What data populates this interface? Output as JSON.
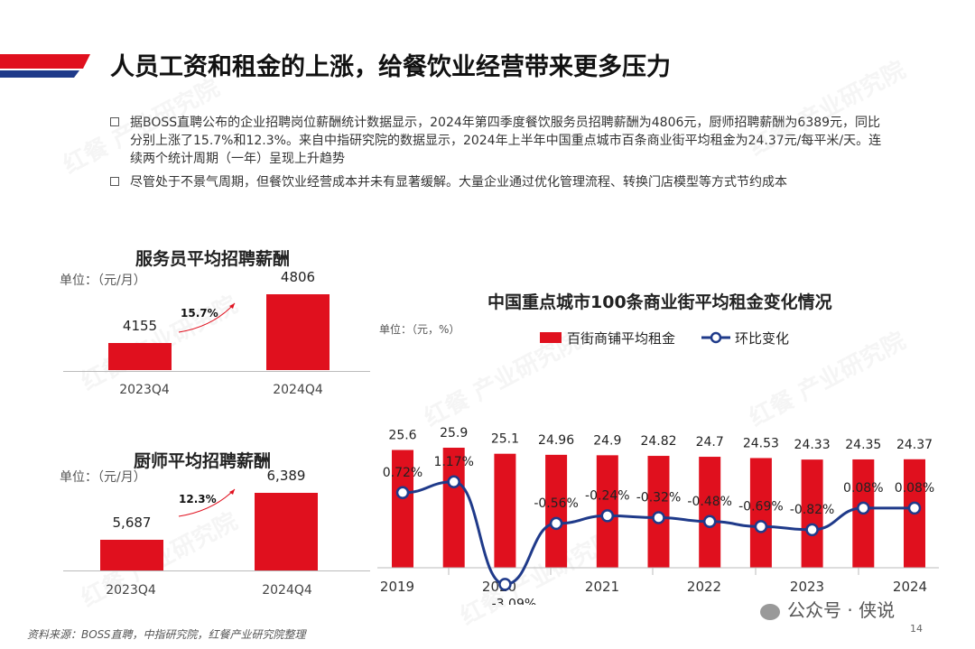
{
  "header": {
    "title": "人员工资和租金的上涨，给餐饮业经营带来更多压力"
  },
  "bullets": [
    "据BOSS直聘公布的企业招聘岗位薪酬统计数据显示，2024年第四季度餐饮服务员招聘薪酬为4806元，厨师招聘薪酬为6389元，同比分别上涨了15.7%和12.3%。来自中指研究院的数据显示，2024年上半年中国重点城市百条商业街平均租金为24.37元/每平米/天。连续两个统计周期（一年）呈现上升趋势",
    "尽管处于不景气周期，但餐饮业经营成本并未有显著缓解。大量企业通过优化管理流程、转换门店模型等方式节约成本"
  ],
  "chart_data": [
    {
      "type": "bar",
      "title": "服务员平均招聘薪酬",
      "unit": "单位：（元/月）",
      "categories": [
        "2023Q4",
        "2024Q4"
      ],
      "values": [
        4155,
        4806
      ],
      "value_labels": [
        "4155",
        "4806"
      ],
      "growth_label": "15.7%",
      "color": "#e0101e"
    },
    {
      "type": "bar",
      "title": "厨师平均招聘薪酬",
      "unit": "单位：（元/月）",
      "categories": [
        "2023Q4",
        "2024Q4"
      ],
      "values": [
        5687,
        6389
      ],
      "value_labels": [
        "5,687",
        "6,389"
      ],
      "growth_label": "12.3%",
      "color": "#e0101e"
    },
    {
      "type": "bar",
      "title": "中国重点城市100条商业街平均租金变化情况",
      "unit": "单位：（元，%）",
      "x_ticks": [
        "2019",
        "2020",
        "2021",
        "2022",
        "2023",
        "2024"
      ],
      "legend_placement": "top",
      "series": [
        {
          "name": "百街商铺平均租金",
          "kind": "bar",
          "color": "#e0101e",
          "values": [
            25.6,
            25.9,
            25.1,
            24.96,
            24.9,
            24.82,
            24.7,
            24.53,
            24.33,
            24.35,
            24.37
          ],
          "labels": [
            "25.6",
            "25.9",
            "25.1",
            "24.96",
            "24.9",
            "24.82",
            "24.7",
            "24.53",
            "24.33",
            "24.35",
            "24.37"
          ]
        },
        {
          "name": "环比变化",
          "kind": "line",
          "color": "#1f3a8a",
          "values": [
            0.72,
            1.17,
            -3.09,
            -0.56,
            -0.24,
            -0.32,
            -0.48,
            -0.69,
            -0.82,
            0.08,
            0.08
          ],
          "labels": [
            "0.72%",
            "1.17%",
            "-3.09%",
            "-0.56%",
            "-0.24%",
            "-0.32%",
            "-0.48%",
            "-0.69%",
            "-0.82%",
            "0.08%",
            "0.08%"
          ]
        }
      ]
    }
  ],
  "footer": {
    "source": "资料来源：BOSS直聘，中指研究院，红餐产业研究院整理",
    "page_number": "14",
    "wechat": "公众号 · 侠说"
  },
  "watermark": "红餐 产业研究院"
}
